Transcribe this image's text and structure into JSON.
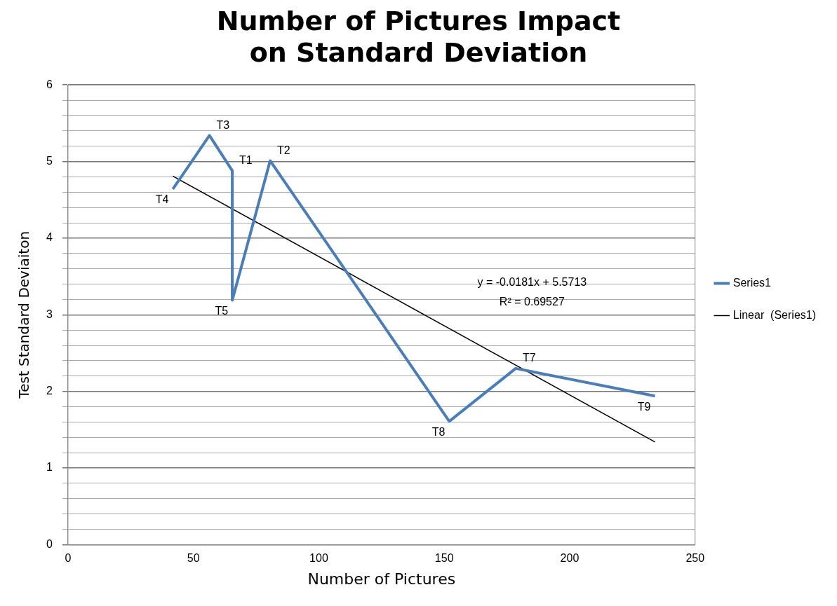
{
  "chart_data": {
    "type": "line",
    "title": "Number of Pictures Impact on Standard Deviation",
    "xlabel": "Number of Pictures",
    "ylabel": "Test Standard Deviaiton",
    "series": [
      {
        "name": "Series1",
        "color": "#4a7ebb",
        "x": [
          41.8,
          56.4,
          65.5,
          65.5,
          80.6,
          152,
          178.5,
          234
        ],
        "values": [
          4.64,
          5.34,
          4.88,
          3.19,
          5.01,
          1.61,
          2.3,
          1.94
        ]
      },
      {
        "name": "Linear  (Series1)",
        "color": "#000000",
        "x": [
          41.8,
          234
        ],
        "values": [
          4.81,
          1.34
        ]
      }
    ],
    "xlim": [
      0,
      250
    ],
    "xticks": [
      0,
      50,
      100,
      150,
      200,
      250
    ],
    "ylim": [
      0,
      6
    ],
    "yticks": [
      0,
      {
        "value": 0.2,
        "label": null
      },
      {
        "value": 0.4,
        "label": null
      },
      {
        "value": 0.6,
        "label": null
      },
      {
        "value": 0.8,
        "label": null
      },
      1,
      {
        "value": 1.2,
        "label": null
      },
      {
        "value": 1.4,
        "label": null
      },
      {
        "value": 1.6,
        "label": null
      },
      {
        "value": 1.8,
        "label": null
      },
      2,
      {
        "value": 2.2,
        "label": null
      },
      {
        "value": 2.4,
        "label": null
      },
      {
        "value": 2.6,
        "label": null
      },
      {
        "value": 2.8,
        "label": null
      },
      3,
      {
        "value": 3.2,
        "label": null
      },
      {
        "value": 3.4,
        "label": null
      },
      {
        "value": 3.6,
        "label": null
      },
      {
        "value": 3.8,
        "label": null
      },
      4,
      {
        "value": 4.2,
        "label": null
      },
      {
        "value": 4.4,
        "label": null
      },
      {
        "value": 4.6,
        "label": null
      },
      {
        "value": 4.8,
        "label": null
      },
      5,
      {
        "value": 5.2,
        "label": null
      },
      {
        "value": 5.4,
        "label": null
      },
      {
        "value": 5.6,
        "label": null
      },
      {
        "value": 5.8,
        "label": null
      },
      6
    ],
    "grid": "y",
    "legend": "right",
    "marker": "none",
    "line_style": "solid",
    "annotations": [
      {
        "text": "T4",
        "x": 41.8,
        "y": 4.64
      },
      {
        "text": "T3",
        "x": 56.4,
        "y": 5.34
      },
      {
        "text": "T1",
        "x": 65.5,
        "y": 4.88
      },
      {
        "text": "T2",
        "x": 80.6,
        "y": 5.01
      },
      {
        "text": "T5",
        "x": 65.5,
        "y": 3.19
      },
      {
        "text": "T8",
        "x": 152,
        "y": 1.61
      },
      {
        "text": "T7",
        "x": 178.5,
        "y": 2.3
      },
      {
        "text": "T9",
        "x": 234,
        "y": 1.94
      },
      "y = -0.0181x + 5.5713",
      "R² = 0.69527"
    ]
  }
}
